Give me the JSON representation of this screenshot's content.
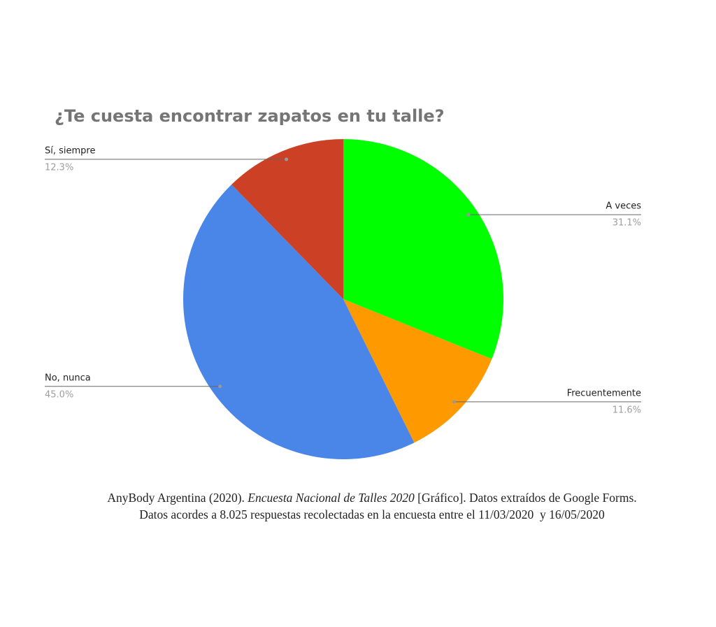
{
  "chart_data": {
    "type": "pie",
    "title": "¿Te cuesta encontrar zapatos en tu talle?",
    "categories": [
      "A veces",
      "Frecuentemente",
      "No, nunca",
      "Sí, siempre"
    ],
    "values": [
      31.1,
      11.6,
      45.0,
      12.3
    ],
    "value_labels": [
      "31.1%",
      "11.6%",
      "45.0%",
      "12.3%"
    ],
    "colors": [
      "#00ff00",
      "#ff9900",
      "#4a86e8",
      "#cc4125"
    ],
    "caption": {
      "author": "AnyBody Argentina (2020).",
      "work": "Encuesta Nacional de Talles 2020",
      "rest": "[Gráfico]. Datos extraídos de Google Forms.",
      "line2": "Datos acordes a 8.025 respuestas recolectadas en la encuesta entre el 11/03/2020  y 16/05/2020"
    }
  }
}
